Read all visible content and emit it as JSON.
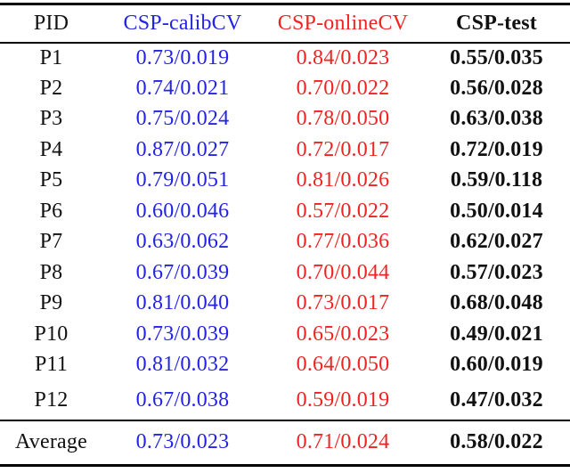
{
  "colors": {
    "calib_blue": "#2323e8",
    "online_red": "#f02222",
    "text_black": "#111111",
    "rule_black": "#000000",
    "background": "#ffffff"
  },
  "table": {
    "columns": [
      {
        "label": "PID"
      },
      {
        "label": "CSP-calibCV"
      },
      {
        "label": "CSP-onlineCV"
      },
      {
        "label": "CSP-test"
      }
    ],
    "rows": [
      {
        "pid": "P1",
        "calib": "0.73/0.019",
        "online": "0.84/0.023",
        "test": "0.55/0.035"
      },
      {
        "pid": "P2",
        "calib": "0.74/0.021",
        "online": "0.70/0.022",
        "test": "0.56/0.028"
      },
      {
        "pid": "P3",
        "calib": "0.75/0.024",
        "online": "0.78/0.050",
        "test": "0.63/0.038"
      },
      {
        "pid": "P4",
        "calib": "0.87/0.027",
        "online": "0.72/0.017",
        "test": "0.72/0.019"
      },
      {
        "pid": "P5",
        "calib": "0.79/0.051",
        "online": "0.81/0.026",
        "test": "0.59/0.118"
      },
      {
        "pid": "P6",
        "calib": "0.60/0.046",
        "online": "0.57/0.022",
        "test": "0.50/0.014"
      },
      {
        "pid": "P7",
        "calib": "0.63/0.062",
        "online": "0.77/0.036",
        "test": "0.62/0.027"
      },
      {
        "pid": "P8",
        "calib": "0.67/0.039",
        "online": "0.70/0.044",
        "test": "0.57/0.023"
      },
      {
        "pid": "P9",
        "calib": "0.81/0.040",
        "online": "0.73/0.017",
        "test": "0.68/0.048"
      },
      {
        "pid": "P10",
        "calib": "0.73/0.039",
        "online": "0.65/0.023",
        "test": "0.49/0.021"
      },
      {
        "pid": "P11",
        "calib": "0.81/0.032",
        "online": "0.64/0.050",
        "test": "0.60/0.019"
      },
      {
        "pid": "P12",
        "calib": "0.67/0.038",
        "online": "0.59/0.019",
        "test": "0.47/0.032"
      }
    ],
    "average": {
      "pid": "Average",
      "calib": "0.73/0.023",
      "online": "0.71/0.024",
      "test": "0.58/0.022"
    }
  }
}
